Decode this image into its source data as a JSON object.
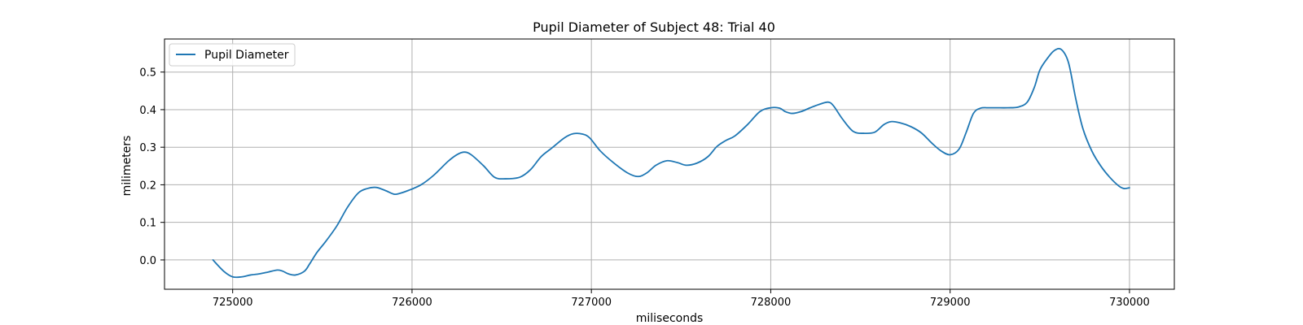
{
  "chart_data": {
    "type": "line",
    "title": "Pupil Diameter of Subject 48: Trial 40",
    "xlabel": "miliseconds",
    "ylabel": "milimeters",
    "xlim": [
      724620,
      730250
    ],
    "ylim": [
      -0.078,
      0.588
    ],
    "xticks": [
      725000,
      726000,
      727000,
      728000,
      729000,
      730000
    ],
    "yticks": [
      0.0,
      0.1,
      0.2,
      0.3,
      0.4,
      0.5
    ],
    "ytick_labels": [
      "0.0",
      "0.1",
      "0.2",
      "0.3",
      "0.4",
      "0.5"
    ],
    "grid": true,
    "legend": {
      "position": "top-left",
      "entries": [
        "Pupil Diameter"
      ]
    },
    "colors": {
      "series": "#1f77b4",
      "grid": "#b0b0b0",
      "axes": "#000000",
      "legend_border": "#cccccc"
    },
    "series": [
      {
        "name": "Pupil Diameter",
        "x": [
          724890,
          724950,
          725000,
          725050,
          725100,
          725150,
          725200,
          725250,
          725280,
          725310,
          725350,
          725400,
          725430,
          725470,
          725520,
          725580,
          725640,
          725700,
          725750,
          725800,
          725850,
          725900,
          725930,
          725980,
          726050,
          726120,
          726200,
          726250,
          726290,
          726330,
          726400,
          726460,
          726520,
          726600,
          726660,
          726720,
          726780,
          726850,
          726900,
          726950,
          726990,
          727050,
          727120,
          727200,
          727260,
          727310,
          727360,
          727420,
          727480,
          727530,
          727590,
          727650,
          727700,
          727750,
          727800,
          727870,
          727940,
          728000,
          728050,
          728080,
          728120,
          728170,
          728220,
          728270,
          728320,
          728350,
          728400,
          728460,
          728520,
          728580,
          728630,
          728670,
          728720,
          728780,
          728840,
          728900,
          728950,
          729000,
          729050,
          729090,
          729130,
          729170,
          729210,
          729260,
          729320,
          729380,
          729430,
          729470,
          729500,
          729540,
          729580,
          729620,
          729660,
          729700,
          729740,
          729790,
          729840,
          729890,
          729940,
          729970,
          730000
        ],
        "y": [
          0.0,
          -0.03,
          -0.045,
          -0.045,
          -0.04,
          -0.037,
          -0.032,
          -0.027,
          -0.03,
          -0.037,
          -0.04,
          -0.03,
          -0.01,
          0.02,
          0.05,
          0.09,
          0.14,
          0.178,
          0.19,
          0.193,
          0.185,
          0.175,
          0.177,
          0.185,
          0.2,
          0.225,
          0.262,
          0.28,
          0.287,
          0.28,
          0.25,
          0.22,
          0.216,
          0.22,
          0.24,
          0.275,
          0.298,
          0.325,
          0.336,
          0.335,
          0.325,
          0.29,
          0.26,
          0.232,
          0.222,
          0.232,
          0.252,
          0.264,
          0.259,
          0.252,
          0.258,
          0.275,
          0.302,
          0.318,
          0.33,
          0.36,
          0.395,
          0.405,
          0.404,
          0.395,
          0.39,
          0.395,
          0.405,
          0.414,
          0.42,
          0.41,
          0.375,
          0.342,
          0.337,
          0.34,
          0.36,
          0.368,
          0.365,
          0.355,
          0.338,
          0.31,
          0.29,
          0.28,
          0.295,
          0.34,
          0.39,
          0.404,
          0.405,
          0.405,
          0.405,
          0.407,
          0.42,
          0.46,
          0.505,
          0.535,
          0.557,
          0.56,
          0.525,
          0.43,
          0.35,
          0.29,
          0.25,
          0.22,
          0.197,
          0.19,
          0.192
        ]
      }
    ]
  }
}
